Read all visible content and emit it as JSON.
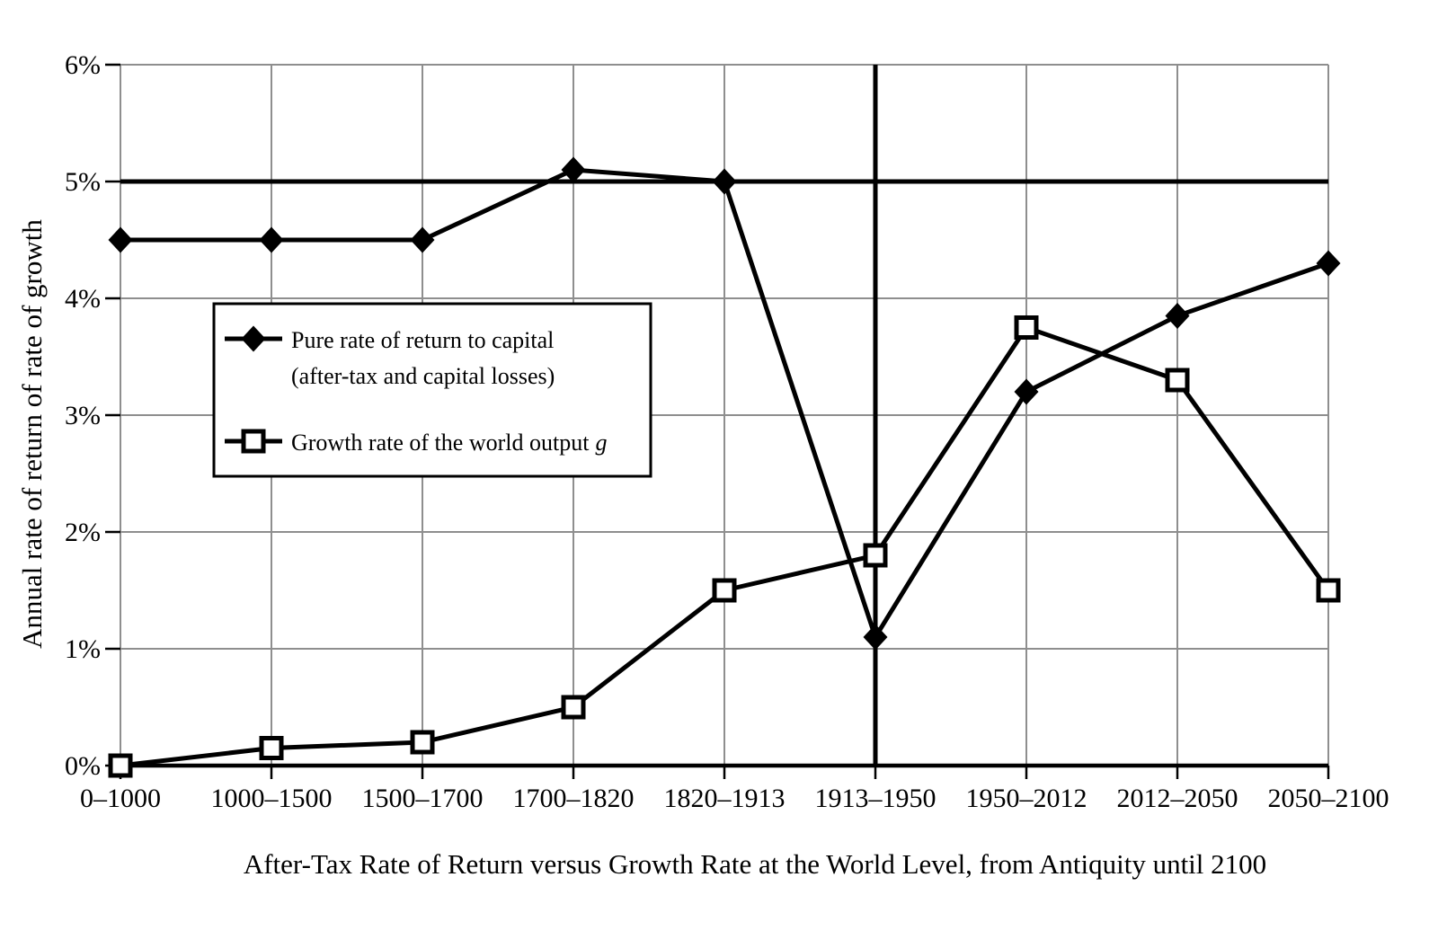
{
  "caption": "After-Tax Rate of Return versus Growth Rate at the World Level, from Antiquity until 2100",
  "y_axis_title": "Annual rate of return of rate of growth",
  "legend": {
    "entry1_line1": "Pure rate of return to capital",
    "entry1_line2": "(after-tax and capital losses)",
    "entry2_text": "Growth rate of the world output",
    "entry2_suffix_italic": "g"
  },
  "colors": {
    "foreground": "#000000",
    "background": "#ffffff",
    "gridline": "#8e8e8e"
  },
  "chart_data": {
    "type": "line",
    "title": "After-Tax Rate of Return versus Growth Rate at the World Level, from Antiquity until 2100",
    "xlabel": "",
    "ylabel": "Annual rate of return of rate of growth",
    "categories": [
      "0–1000",
      "1000–1500",
      "1500–1700",
      "1700–1820",
      "1820–1913",
      "1913–1950",
      "1950–2012",
      "2012–2050",
      "2050–2100"
    ],
    "y_ticks": [
      "0%",
      "1%",
      "2%",
      "3%",
      "4%",
      "5%",
      "6%"
    ],
    "ylim": [
      0,
      6
    ],
    "grid": true,
    "legend_position": "upper-left-inside",
    "series": [
      {
        "name": "Pure rate of return to capital (after-tax and capital losses)",
        "marker": "filled-diamond",
        "values": [
          4.5,
          4.5,
          4.5,
          5.1,
          5.0,
          1.1,
          3.2,
          3.85,
          4.3
        ]
      },
      {
        "name": "Growth rate of the world output g",
        "marker": "open-square",
        "values": [
          0.0,
          0.15,
          0.2,
          0.5,
          1.5,
          1.8,
          3.75,
          3.3,
          1.5
        ]
      }
    ],
    "reference_lines": {
      "horizontal_at": 5.0,
      "vertical_at_category": "1913–1950"
    }
  }
}
